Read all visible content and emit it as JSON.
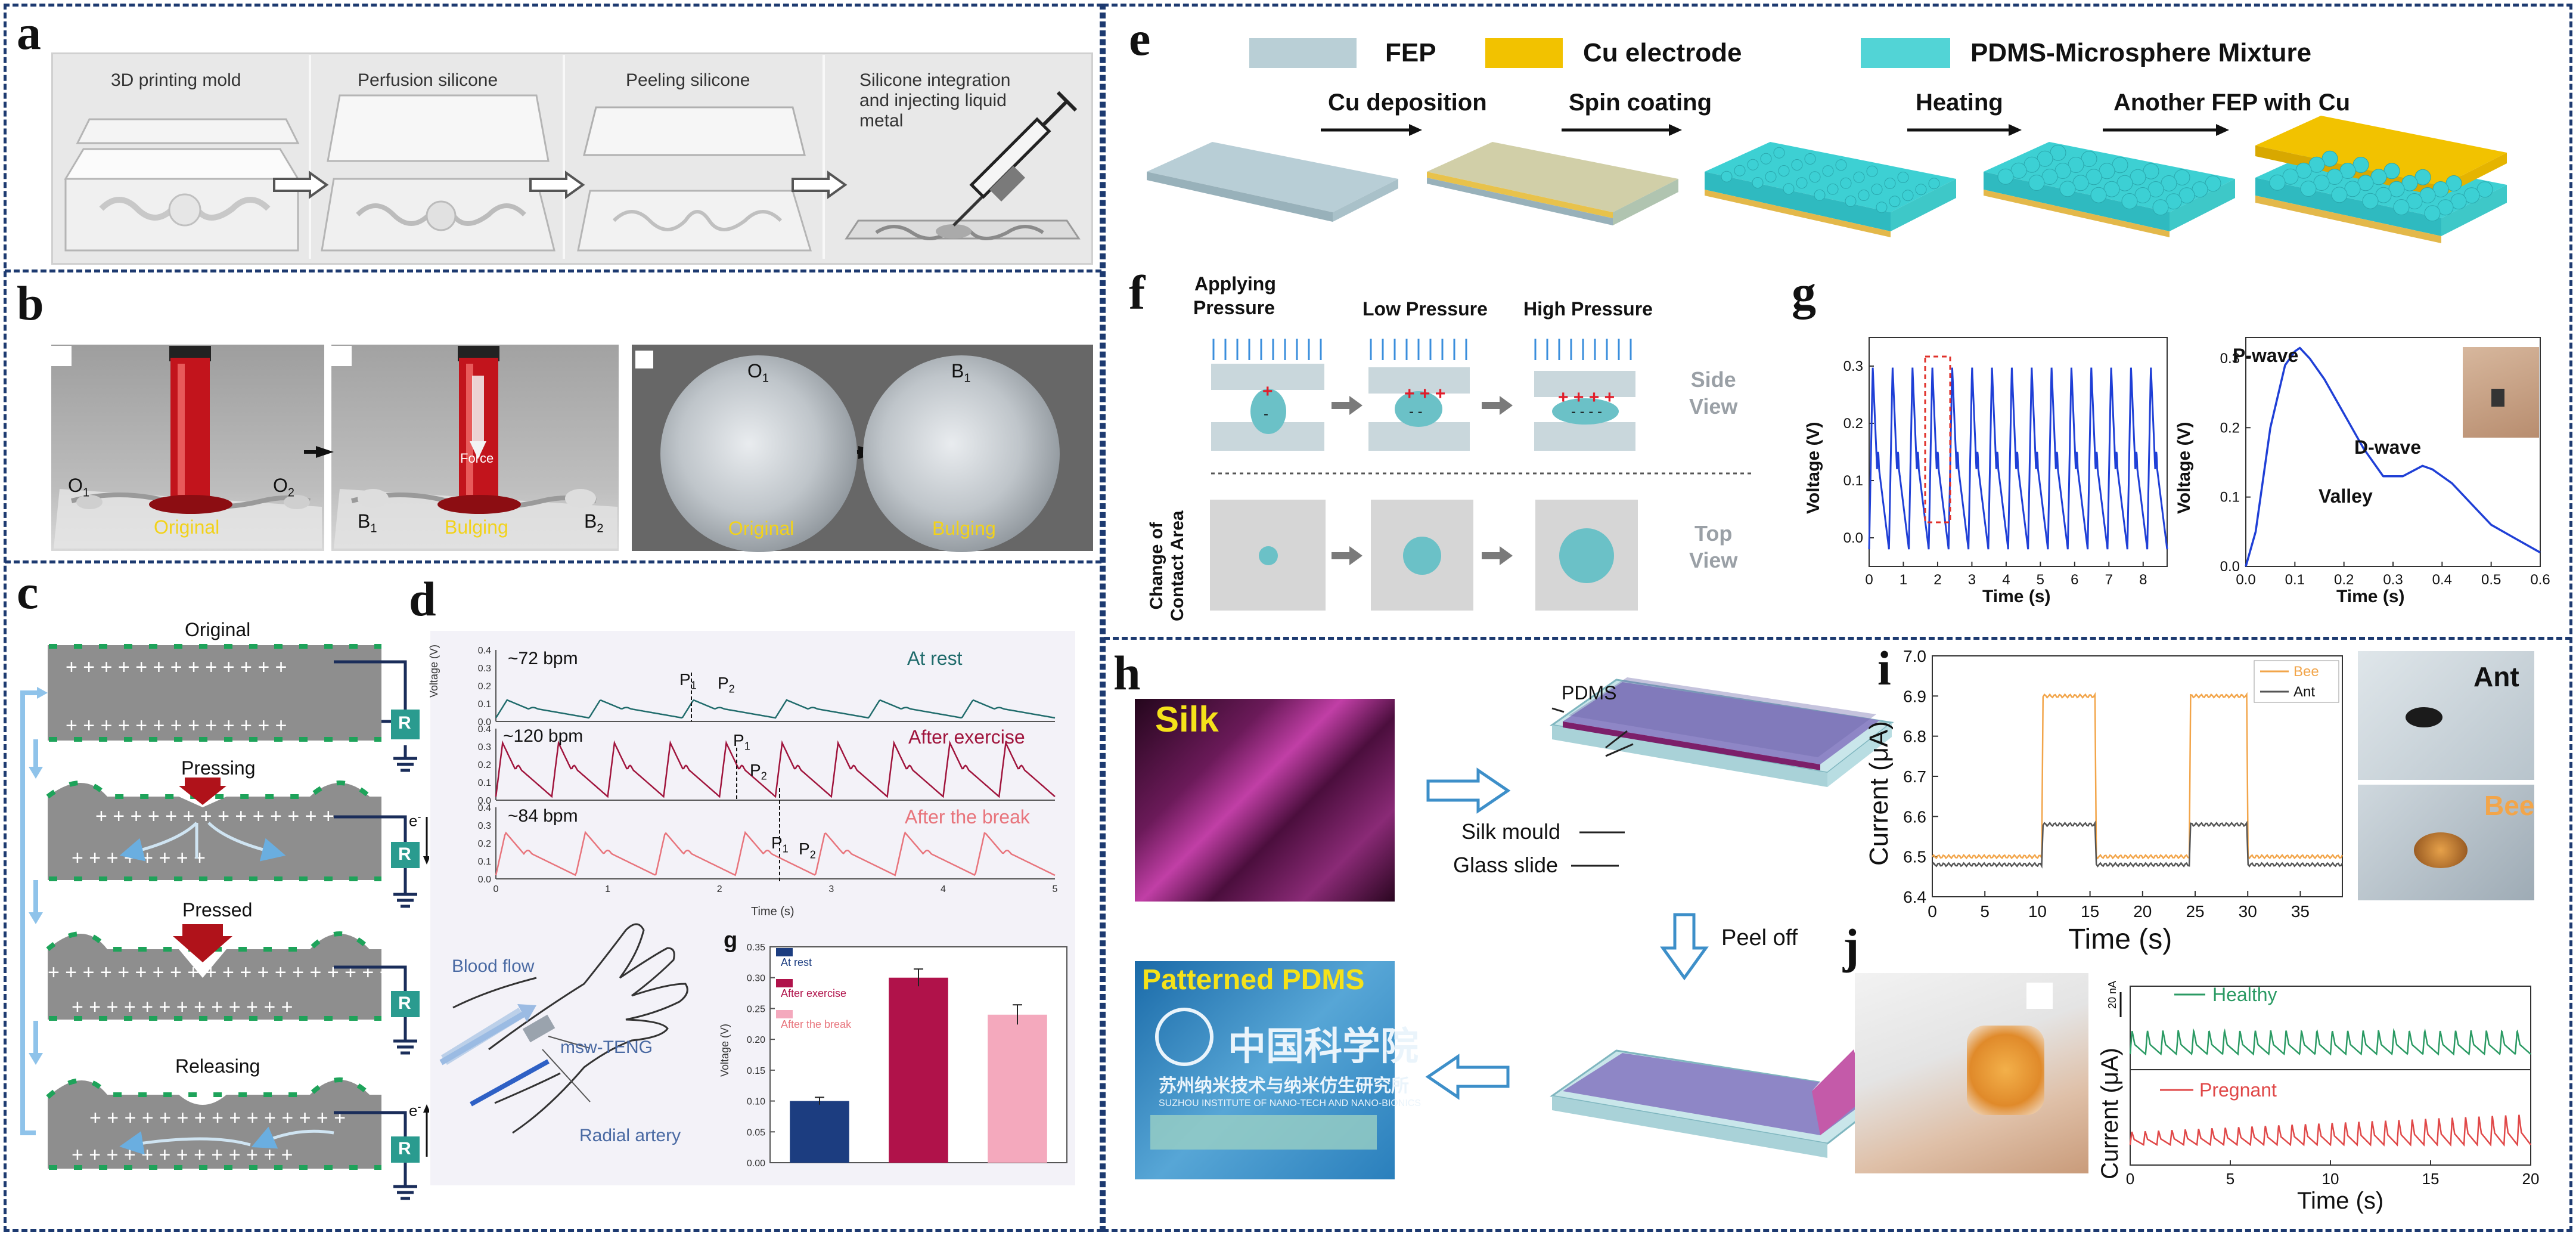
{
  "panel_labels": {
    "a": "a",
    "b": "b",
    "c": "c",
    "d": "d",
    "e": "e",
    "f": "f",
    "g": "g",
    "h": "h",
    "i": "i",
    "j": "j"
  },
  "panel_a": {
    "steps": [
      "3D printing mold",
      "Perfusion silicone",
      "Peeling silicone",
      "Silicone integration",
      "and injecting liquid",
      "metal"
    ]
  },
  "panel_b": {
    "o1": "O",
    "o1_sub": "1",
    "o2": "O",
    "o2_sub": "2",
    "b1": "B",
    "b1_sub": "1",
    "b2": "B",
    "b2_sub": "2",
    "force": "Force",
    "original": "Original",
    "bulging": "Bulging",
    "circle_o1": "O",
    "circle_o1_sub": "1",
    "circle_b1": "B",
    "circle_b1_sub": "1",
    "circle_original": "Original",
    "circle_bulging": "Bulging"
  },
  "panel_c": {
    "states": [
      "Original",
      "Pressing",
      "Pressed",
      "Releasing"
    ],
    "resistor": "R",
    "electron": "e",
    "electron_sup": "-"
  },
  "panel_d": {
    "rows": [
      {
        "bpm": "~72 bpm",
        "state": "At rest",
        "color": "#1f6b6b"
      },
      {
        "bpm": "~120 bpm",
        "state": "After exercise",
        "color": "#a0143c"
      },
      {
        "bpm": "~84 bpm",
        "state": "After the break",
        "color": "#e8747c"
      }
    ],
    "p1": "P",
    "p1_sub": "1",
    "p2": "P",
    "p2_sub": "2",
    "ylabel": "Voltage (V)",
    "xlabel": "Time (s)",
    "xticks": [
      "0",
      "1",
      "2",
      "3",
      "4",
      "5"
    ],
    "yticks": [
      "0.0",
      "0.1",
      "0.2",
      "0.3",
      "0.4"
    ],
    "diagram": {
      "blood_flow": "Blood flow",
      "device": "msw-TENG",
      "artery": "Radial artery"
    }
  },
  "panel_d_bar": {
    "label": "g",
    "ylabel": "Voltage (V)",
    "yticks": [
      "0.00",
      "0.05",
      "0.10",
      "0.15",
      "0.20",
      "0.25",
      "0.30",
      "0.35"
    ]
  },
  "panel_e": {
    "legend": [
      {
        "label": "FEP",
        "color": "#b9cfd6"
      },
      {
        "label": "Cu electrode",
        "color": "#f2c200"
      },
      {
        "label": "PDMS-Microsphere Mixture",
        "color": "#52d4d6"
      }
    ],
    "steps": [
      "Cu deposition",
      "Spin coating",
      "Heating",
      "Another FEP with Cu"
    ]
  },
  "panel_f": {
    "stages": [
      "Applying",
      "Pressure",
      "Low Pressure",
      "High Pressure"
    ],
    "side_view": "Side View",
    "top_view": "Top View",
    "side_view_lines": [
      "Side",
      "View"
    ],
    "top_view_lines": [
      "Top",
      "View"
    ],
    "contact_lines": [
      "Change of",
      "Contact Area"
    ]
  },
  "panel_g": {
    "left": {
      "ylabel": "Voltage (V)",
      "xlabel": "Time (s)",
      "xticks": [
        "0",
        "1",
        "2",
        "3",
        "4",
        "5",
        "6",
        "7",
        "8"
      ],
      "yticks": [
        "0.0",
        "0.1",
        "0.2",
        "0.3"
      ]
    },
    "right": {
      "ylabel": "Voltage (V)",
      "xlabel": "Time (s)",
      "xticks": [
        "0.0",
        "0.1",
        "0.2",
        "0.3",
        "0.4",
        "0.5",
        "0.6"
      ],
      "yticks": [
        "0.0",
        "0.1",
        "0.2",
        "0.3"
      ],
      "p_wave": "P-wave",
      "d_wave": "D-wave",
      "valley": "Valley"
    }
  },
  "panel_h": {
    "silk": "Silk",
    "pdms": "PDMS",
    "silk_mould": "Silk mould",
    "glass_slide": "Glass slide",
    "peel_off": "Peel off",
    "patterned": "Patterned PDMS",
    "cas_text": "中国科学院",
    "inst_cn": "苏州纳米技术与纳米仿生研究所",
    "inst_en": "SUZHOU INSTITUTE OF NANO-TECH AND NANO-BIONICS"
  },
  "panel_i": {
    "ylabel": "Current (μA)",
    "xlabel": "Time (s)",
    "yticks": [
      "6.4",
      "6.5",
      "6.6",
      "6.7",
      "6.8",
      "6.9",
      "7.0"
    ],
    "xticks": [
      "0",
      "5",
      "10",
      "15",
      "20",
      "25",
      "30",
      "35"
    ],
    "legend_bee": "Bee",
    "legend_ant": "Ant",
    "photo_ant": "Ant",
    "photo_bee": "Bee"
  },
  "panel_j": {
    "ylabel": "Current (μA)",
    "scale": "20 nA",
    "xlabel": "Time (s)",
    "xticks": [
      "0",
      "5",
      "10",
      "15",
      "20"
    ],
    "healthy": "Healthy",
    "pregnant": "Pregnant"
  },
  "chart_data": [
    {
      "id": "panel-d-pulse",
      "type": "line",
      "title": "",
      "xlabel": "Time (s)",
      "ylabel": "Voltage (V)",
      "xlim": [
        0,
        5
      ],
      "ylim": [
        0,
        0.4
      ],
      "series": [
        {
          "name": "At rest",
          "bpm": 72,
          "peak_voltage": 0.1
        },
        {
          "name": "After exercise",
          "bpm": 120,
          "peak_voltage": 0.3
        },
        {
          "name": "After the break",
          "bpm": 84,
          "peak_voltage": 0.24
        }
      ]
    },
    {
      "id": "panel-d-bars",
      "type": "bar",
      "categories": [
        "At rest",
        "After exercise",
        "After the break"
      ],
      "values": [
        0.1,
        0.3,
        0.24
      ],
      "errors": [
        0.006,
        0.014,
        0.016
      ],
      "colors": [
        "#1c3d80",
        "#b0124a",
        "#f4a9bd"
      ],
      "ylabel": "Voltage (V)",
      "ylim": [
        0,
        0.35
      ]
    },
    {
      "id": "panel-g-left",
      "type": "line",
      "xlabel": "Time (s)",
      "ylabel": "Voltage (V)",
      "xlim": [
        0,
        8.7
      ],
      "ylim": [
        -0.05,
        0.35
      ],
      "cycles": 15,
      "peak": 0.3,
      "trough": -0.02
    },
    {
      "id": "panel-g-right",
      "type": "line",
      "xlabel": "Time (s)",
      "ylabel": "Voltage (V)",
      "xlim": [
        0,
        0.6
      ],
      "ylim": [
        0,
        0.33
      ],
      "x": [
        0,
        0.02,
        0.05,
        0.08,
        0.1,
        0.11,
        0.13,
        0.16,
        0.2,
        0.24,
        0.28,
        0.32,
        0.36,
        0.38,
        0.42,
        0.46,
        0.5,
        0.55,
        0.6
      ],
      "y": [
        0.0,
        0.05,
        0.2,
        0.29,
        0.31,
        0.315,
        0.3,
        0.27,
        0.22,
        0.17,
        0.13,
        0.13,
        0.145,
        0.14,
        0.12,
        0.09,
        0.06,
        0.04,
        0.02
      ]
    },
    {
      "id": "panel-i",
      "type": "line",
      "xlabel": "Time (s)",
      "ylabel": "Current (μA)",
      "xlim": [
        0,
        39
      ],
      "ylim": [
        6.4,
        7.0
      ],
      "series": [
        {
          "name": "Bee",
          "baseline": 6.5,
          "high": 6.9,
          "on_intervals": [
            [
              10.5,
              15.5
            ],
            [
              24.5,
              30
            ]
          ]
        },
        {
          "name": "Ant",
          "baseline": 6.48,
          "high": 6.58,
          "on_intervals": [
            [
              10.5,
              15.5
            ],
            [
              24.5,
              30
            ]
          ]
        }
      ]
    },
    {
      "id": "panel-j",
      "type": "line",
      "xlabel": "Time (s)",
      "xlim": [
        0,
        20
      ],
      "series": [
        {
          "name": "Healthy",
          "beats": 26
        },
        {
          "name": "Pregnant",
          "beats": 30
        }
      ]
    }
  ]
}
